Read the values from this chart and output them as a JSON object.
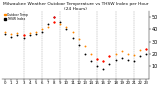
{
  "title": "Milwaukee Weather Outdoor Temperature vs THSW Index per Hour (24 Hours)",
  "title_fontsize": 3.2,
  "background_color": "#ffffff",
  "grid_color": "#999999",
  "hours": [
    0,
    1,
    2,
    3,
    4,
    5,
    6,
    7,
    8,
    9,
    10,
    11,
    12,
    13,
    14,
    15,
    16,
    17,
    18,
    19,
    20,
    21,
    22,
    23
  ],
  "temp_values": [
    38,
    36,
    37,
    35,
    37,
    38,
    40,
    42,
    46,
    44,
    42,
    38,
    32,
    26,
    20,
    16,
    14,
    18,
    20,
    22,
    20,
    19,
    23,
    24
  ],
  "thsw_values": [
    36,
    34,
    35,
    33,
    35,
    36,
    38,
    44,
    50,
    46,
    40,
    33,
    27,
    20,
    14,
    10,
    8,
    12,
    15,
    17,
    15,
    14,
    18,
    20
  ],
  "temp_color": "#ff8800",
  "thsw_color": "#000000",
  "red_color": "#ff0000",
  "red_hours_temp": [
    3,
    8,
    15,
    16,
    17,
    23
  ],
  "red_hours_thsw": [
    8
  ],
  "ylim": [
    0,
    55
  ],
  "yticks": [
    10,
    20,
    30,
    40,
    50
  ],
  "ylabel_fontsize": 3.5,
  "xlabel_fontsize": 2.8,
  "dot_size": 1.8,
  "red_dot_size": 2.5,
  "vgrid_hours": [
    3,
    6,
    9,
    12,
    15,
    18,
    21
  ]
}
